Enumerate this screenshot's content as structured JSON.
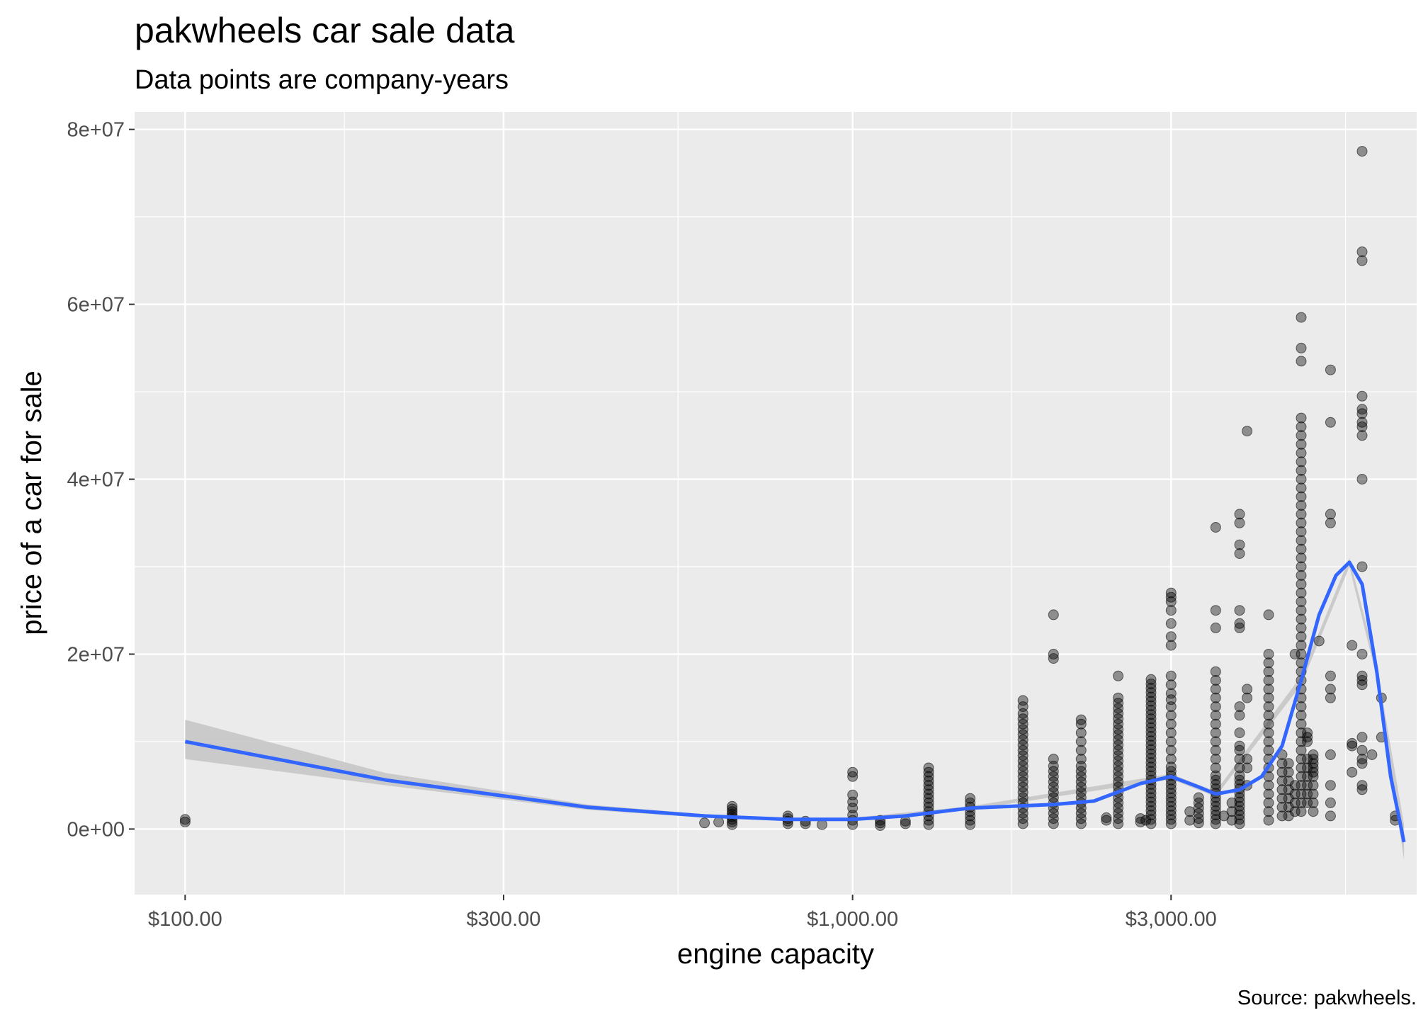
{
  "chart_data": {
    "type": "scatter",
    "title": "pakwheels car sale data",
    "subtitle": "Data points are company-years",
    "xlabel": "engine capacity",
    "ylabel": "price of a car for sale",
    "caption": "Source: pakwheels.",
    "x_scale": "log10",
    "xlim": [
      84,
      7000
    ],
    "ylim": [
      -7500000,
      82000000
    ],
    "x_ticks": [
      {
        "value": 100,
        "label": "$100.00"
      },
      {
        "value": 300,
        "label": "$300.00"
      },
      {
        "value": 1000,
        "label": "$1,000.00"
      },
      {
        "value": 3000,
        "label": "$3,000.00"
      }
    ],
    "y_ticks": [
      {
        "value": 0,
        "label": "0e+00"
      },
      {
        "value": 20000000,
        "label": "2e+07"
      },
      {
        "value": 40000000,
        "label": "4e+07"
      },
      {
        "value": 60000000,
        "label": "6e+07"
      },
      {
        "value": 80000000,
        "label": "8e+07"
      }
    ],
    "grid": true,
    "point_color": "#000000",
    "smooth_color": "#3366ff",
    "band_color": "#c4c4c4",
    "panel_color": "#ebebeb",
    "columns": [
      {
        "x": 100,
        "y": [
          800000,
          1100000
        ]
      },
      {
        "x": 600,
        "y": [
          700000
        ]
      },
      {
        "x": 630,
        "y": [
          800000
        ]
      },
      {
        "x": 660,
        "y": [
          500000,
          800000,
          1100000,
          1400000,
          1700000,
          2000000,
          2300000,
          2600000
        ]
      },
      {
        "x": 800,
        "y": [
          600000,
          900000,
          1200000,
          1500000
        ]
      },
      {
        "x": 850,
        "y": [
          600000,
          900000
        ]
      },
      {
        "x": 900,
        "y": [
          500000
        ]
      },
      {
        "x": 1000,
        "y": [
          500000,
          1000000,
          1600000,
          2400000,
          3100000,
          3900000,
          6000000,
          6500000
        ]
      },
      {
        "x": 1100,
        "y": [
          400000,
          700000,
          1000000
        ]
      },
      {
        "x": 1200,
        "y": [
          600000,
          900000
        ]
      },
      {
        "x": 1300,
        "y": [
          500000,
          1000000,
          1500000,
          2000000,
          2500000,
          3000000,
          3500000,
          4000000,
          4500000,
          5000000,
          5500000,
          6000000,
          6500000,
          7000000
        ]
      },
      {
        "x": 1500,
        "y": [
          500000,
          1000000,
          1500000,
          2000000,
          2500000,
          3000000,
          3500000
        ]
      },
      {
        "x": 1800,
        "y": [
          600000,
          1200000,
          1800000,
          2400000,
          3000000,
          3600000,
          4200000,
          4800000,
          5400000,
          6000000,
          6600000,
          7200000,
          7800000,
          8400000,
          9000000,
          9600000,
          10200000,
          10800000,
          11400000,
          12000000,
          12600000,
          13200000,
          14000000,
          14700000
        ]
      },
      {
        "x": 2000,
        "y": [
          600000,
          1200000,
          1800000,
          2400000,
          3000000,
          3600000,
          4200000,
          4800000,
          5400000,
          6000000,
          6600000,
          7200000,
          8000000,
          19500000,
          20000000,
          24500000
        ]
      },
      {
        "x": 2200,
        "y": [
          600000,
          1200000,
          1800000,
          2400000,
          3000000,
          3600000,
          4200000,
          4800000,
          5400000,
          6000000,
          6600000,
          7200000,
          8000000,
          9000000,
          10000000,
          11000000,
          12000000,
          12500000
        ]
      },
      {
        "x": 2400,
        "y": [
          1000000,
          1300000
        ]
      },
      {
        "x": 2500,
        "y": [
          600000,
          1200000,
          1800000,
          2400000,
          3000000,
          3600000,
          4200000,
          4800000,
          5400000,
          6000000,
          6600000,
          7200000,
          7800000,
          8400000,
          9000000,
          9600000,
          10200000,
          10800000,
          11400000,
          12000000,
          12600000,
          13200000,
          13800000,
          14400000,
          15000000,
          17500000
        ]
      },
      {
        "x": 2700,
        "y": [
          800000,
          1200000
        ]
      },
      {
        "x": 2750,
        "y": [
          1000000
        ]
      },
      {
        "x": 2800,
        "y": [
          600000,
          1100000,
          1600000,
          2100000,
          2600000,
          3100000,
          3600000,
          4100000,
          4600000,
          5100000,
          5600000,
          6100000,
          6600000,
          7100000,
          7600000,
          8100000,
          8600000,
          9100000,
          9600000,
          10100000,
          10600000,
          11100000,
          11600000,
          12100000,
          12600000,
          13100000,
          13600000,
          14100000,
          14600000,
          15100000,
          15600000,
          16100000,
          16600000,
          17100000
        ]
      },
      {
        "x": 3000,
        "y": [
          600000,
          1100000,
          1600000,
          2100000,
          2600000,
          3100000,
          3600000,
          4100000,
          4600000,
          5100000,
          5600000,
          6100000,
          6600000,
          7100000,
          8000000,
          9000000,
          10000000,
          11000000,
          12000000,
          13000000,
          14000000,
          14800000,
          15500000,
          16500000,
          17500000,
          21000000,
          22000000,
          23500000,
          25000000,
          26000000,
          26500000,
          27000000
        ]
      },
      {
        "x": 3200,
        "y": [
          1000000,
          2000000
        ]
      },
      {
        "x": 3300,
        "y": [
          700000,
          1200000,
          1800000,
          2400000,
          3000000,
          3600000
        ]
      },
      {
        "x": 3500,
        "y": [
          600000,
          1100000,
          1600000,
          2100000,
          2600000,
          3100000,
          3600000,
          4100000,
          4600000,
          5100000,
          5600000,
          6100000,
          7000000,
          8000000,
          9000000,
          10000000,
          11000000,
          12000000,
          13000000,
          14000000,
          15000000,
          16000000,
          17000000,
          18000000,
          23000000,
          25000000,
          34500000
        ]
      },
      {
        "x": 3600,
        "y": [
          1500000
        ]
      },
      {
        "x": 3700,
        "y": [
          1000000,
          2000000,
          3000000
        ]
      },
      {
        "x": 3800,
        "y": [
          600000,
          1100000,
          1600000,
          2100000,
          2600000,
          3100000,
          3600000,
          4100000,
          4600000,
          5100000,
          5600000,
          6100000,
          7000000,
          8000000,
          9000000,
          9500000,
          11000000,
          13000000,
          14000000,
          23000000,
          23500000,
          25000000,
          31500000,
          32500000,
          35000000,
          36000000
        ]
      },
      {
        "x": 3900,
        "y": [
          5000000,
          7000000,
          8000000,
          15000000,
          16000000,
          45500000
        ]
      },
      {
        "x": 4200,
        "y": [
          1000000,
          2000000,
          3000000,
          4000000,
          5000000,
          6000000,
          7000000,
          8000000,
          9000000,
          10000000,
          11000000,
          12000000,
          13000000,
          14000000,
          15000000,
          16000000,
          17000000,
          18000000,
          19000000,
          20000000,
          24500000
        ]
      },
      {
        "x": 4400,
        "y": [
          1500000,
          2500000,
          3500000,
          4500000,
          5500000,
          6500000,
          7500000,
          8500000
        ]
      },
      {
        "x": 4500,
        "y": [
          1500000,
          2500000,
          3500000,
          4500000,
          5500000,
          6500000,
          7500000
        ]
      },
      {
        "x": 4600,
        "y": [
          2000000,
          3000000,
          4000000,
          5000000,
          20000000
        ]
      },
      {
        "x": 4700,
        "y": [
          2000000,
          3000000,
          4000000,
          5000000,
          6000000,
          7000000,
          8000000,
          9000000,
          10000000,
          11000000,
          12000000,
          13000000,
          14000000,
          15000000,
          16000000,
          17000000,
          18000000,
          19000000,
          20000000,
          21000000,
          22000000,
          23000000,
          24000000,
          25000000,
          26000000,
          27000000,
          28000000,
          29000000,
          30000000,
          31000000,
          32000000,
          33000000,
          34000000,
          35000000,
          36000000,
          37000000,
          38000000,
          39000000,
          40000000,
          41000000,
          42000000,
          43000000,
          44000000,
          45000000,
          46000000,
          47000000,
          53500000,
          55000000,
          58500000
        ]
      },
      {
        "x": 4800,
        "y": [
          3000000,
          4000000,
          5000000,
          6000000,
          7000000,
          8000000,
          10000000,
          10500000,
          11000000
        ]
      },
      {
        "x": 4900,
        "y": [
          2000000,
          3000000,
          4000000,
          5000000,
          6000000,
          6500000,
          7000000,
          7500000,
          8000000,
          8500000
        ]
      },
      {
        "x": 5000,
        "y": [
          21500000
        ]
      },
      {
        "x": 5200,
        "y": [
          1500000,
          3000000,
          5000000,
          8500000,
          15000000,
          16000000,
          17500000,
          35000000,
          36000000,
          46500000,
          52500000
        ]
      },
      {
        "x": 5600,
        "y": [
          6500000,
          9500000,
          9800000,
          21000000
        ]
      },
      {
        "x": 5800,
        "y": [
          4500000,
          5000000,
          7500000,
          8000000,
          9000000,
          10500000,
          16500000,
          17000000,
          17500000,
          20000000,
          30000000,
          40000000,
          45000000,
          46000000,
          46500000,
          47500000,
          48000000,
          49500000,
          65000000,
          66000000,
          77500000
        ]
      },
      {
        "x": 6000,
        "y": [
          8500000
        ]
      },
      {
        "x": 6200,
        "y": [
          10500000,
          15000000
        ]
      },
      {
        "x": 6500,
        "y": [
          1000000,
          1500000
        ]
      }
    ],
    "smooth_line": [
      {
        "x": 100,
        "y": 10000000
      },
      {
        "x": 200,
        "y": 5600000
      },
      {
        "x": 400,
        "y": 2500000
      },
      {
        "x": 600,
        "y": 1500000
      },
      {
        "x": 800,
        "y": 1100000
      },
      {
        "x": 1000,
        "y": 1100000
      },
      {
        "x": 1200,
        "y": 1500000
      },
      {
        "x": 1500,
        "y": 2400000
      },
      {
        "x": 2000,
        "y": 2800000
      },
      {
        "x": 2300,
        "y": 3200000
      },
      {
        "x": 2700,
        "y": 5200000
      },
      {
        "x": 3000,
        "y": 6000000
      },
      {
        "x": 3300,
        "y": 4800000
      },
      {
        "x": 3500,
        "y": 4000000
      },
      {
        "x": 3800,
        "y": 4500000
      },
      {
        "x": 4100,
        "y": 6000000
      },
      {
        "x": 4400,
        "y": 9500000
      },
      {
        "x": 4700,
        "y": 17000000
      },
      {
        "x": 5000,
        "y": 24500000
      },
      {
        "x": 5300,
        "y": 29000000
      },
      {
        "x": 5550,
        "y": 30500000
      },
      {
        "x": 5800,
        "y": 28000000
      },
      {
        "x": 6100,
        "y": 18000000
      },
      {
        "x": 6400,
        "y": 6000000
      },
      {
        "x": 6700,
        "y": -1500000
      }
    ],
    "band": [
      {
        "x": 100,
        "lo": 8000000,
        "hi": 12500000
      },
      {
        "x": 200,
        "lo": 5000000,
        "hi": 6400000
      },
      {
        "x": 400,
        "lo": 2200000,
        "hi": 2800000
      },
      {
        "x": 600,
        "lo": 1300000,
        "hi": 1700000
      },
      {
        "x": 800,
        "lo": 900000,
        "hi": 1300000
      },
      {
        "x": 1000,
        "lo": 900000,
        "hi": 1300000
      },
      {
        "x": 1500,
        "lo": 2200000,
        "hi": 2600000
      },
      {
        "x": 3000,
        "lo": 5700000,
        "hi": 6300000
      },
      {
        "x": 3500,
        "lo": 3700000,
        "hi": 4300000
      },
      {
        "x": 4700,
        "lo": 16500000,
        "hi": 17500000
      },
      {
        "x": 5550,
        "lo": 30000000,
        "hi": 31000000
      },
      {
        "x": 6100,
        "lo": 17300000,
        "hi": 18700000
      },
      {
        "x": 6700,
        "lo": -3500000,
        "hi": 500000
      }
    ]
  }
}
